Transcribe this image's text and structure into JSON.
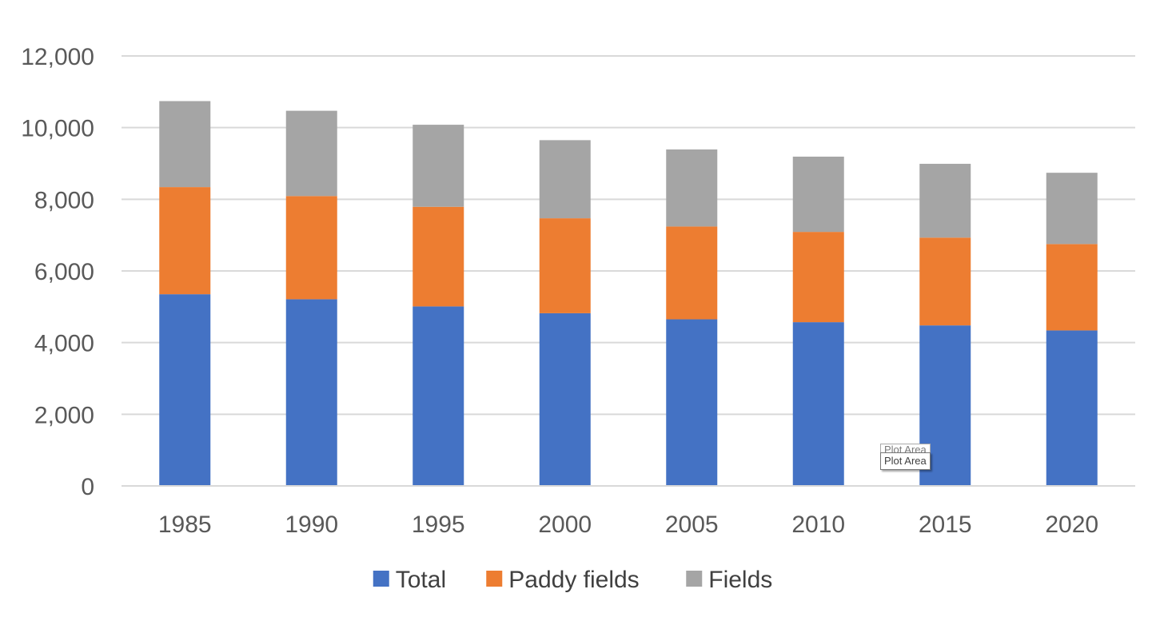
{
  "chart_data": {
    "type": "bar",
    "stacked": true,
    "categories": [
      "1985",
      "1990",
      "1995",
      "2000",
      "2005",
      "2010",
      "2015",
      "2020"
    ],
    "series": [
      {
        "name": "Total",
        "color": "#4472c4",
        "values": [
          5350,
          5210,
          5010,
          4820,
          4650,
          4570,
          4480,
          4340
        ]
      },
      {
        "name": "Paddy fields",
        "color": "#ed7d31",
        "values": [
          2990,
          2880,
          2780,
          2650,
          2590,
          2520,
          2450,
          2410
        ]
      },
      {
        "name": "Fields",
        "color": "#a5a5a5",
        "values": [
          2400,
          2380,
          2290,
          2180,
          2150,
          2100,
          2060,
          1990
        ]
      }
    ],
    "ylim": [
      0,
      12000
    ],
    "yticks": [
      "0",
      "2,000",
      "4,000",
      "6,000",
      "8,000",
      "10,000",
      "12,000"
    ],
    "ytick_values": [
      0,
      2000,
      4000,
      6000,
      8000,
      10000,
      12000
    ],
    "grid": true,
    "legend_position": "bottom"
  },
  "tooltip": {
    "label": "Plot Area",
    "ghost_label": "Plot Area"
  }
}
